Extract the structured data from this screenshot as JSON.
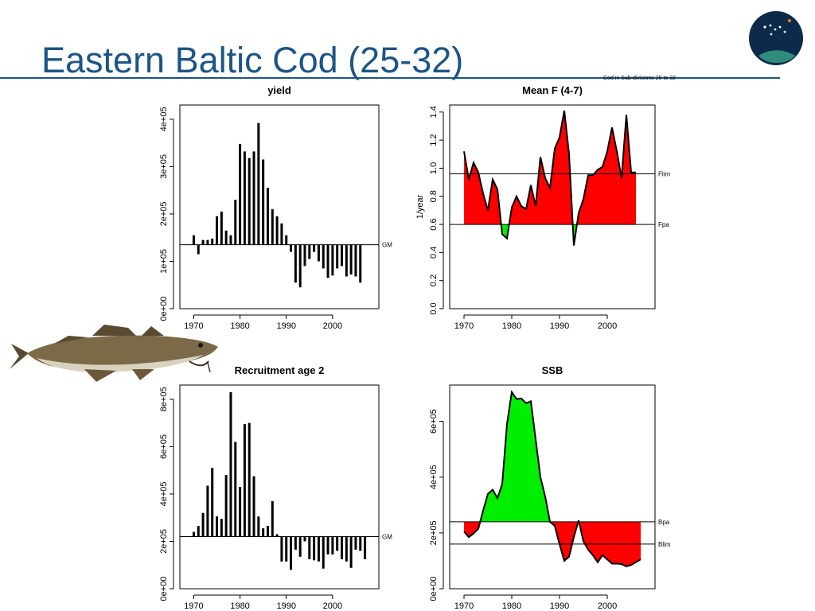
{
  "slide": {
    "title": "Eastern Baltic Cod (25-32)",
    "subnote": "Cod in Sub-divisions 25 to 32",
    "logo": "ices-logo-icon",
    "image": "cod-fish-illustration"
  },
  "colors": {
    "title": "#1d5585",
    "positive": "#00ee00",
    "negative": "#ff0000",
    "ink": "#000000"
  },
  "chart_data": [
    {
      "id": "yield",
      "type": "bar",
      "title": "yield",
      "ylabel": "",
      "baseline_label": "GM",
      "baseline": 135000,
      "xlim": [
        1967,
        2010
      ],
      "ylim": [
        0,
        430000
      ],
      "xticks": [
        1970,
        1980,
        1990,
        2000
      ],
      "yticks": [
        0,
        100000,
        200000,
        300000,
        400000
      ],
      "ytick_labels": [
        "0e+00",
        "1e+05",
        "2e+05",
        "3e+05",
        "4e+05"
      ],
      "x": [
        1970,
        1971,
        1972,
        1973,
        1974,
        1975,
        1976,
        1977,
        1978,
        1979,
        1980,
        1981,
        1982,
        1983,
        1984,
        1985,
        1986,
        1987,
        1988,
        1989,
        1990,
        1991,
        1992,
        1993,
        1994,
        1995,
        1996,
        1997,
        1998,
        1999,
        2000,
        2001,
        2002,
        2003,
        2004,
        2005,
        2006
      ],
      "values": [
        155000,
        115000,
        145000,
        145000,
        148000,
        195000,
        205000,
        165000,
        155000,
        230000,
        348000,
        332000,
        318000,
        332000,
        392000,
        315000,
        255000,
        210000,
        195000,
        180000,
        155000,
        120000,
        55000,
        45000,
        90000,
        105000,
        120000,
        100000,
        85000,
        65000,
        70000,
        85000,
        90000,
        68000,
        72000,
        68000,
        55000
      ]
    },
    {
      "id": "meanf",
      "type": "area",
      "title": "Mean F (4-7)",
      "ylabel": "1/year",
      "xlim": [
        1967,
        2010
      ],
      "ylim": [
        0,
        1.45
      ],
      "xticks": [
        1970,
        1980,
        1990,
        2000
      ],
      "yticks": [
        0,
        0.2,
        0.4,
        0.6,
        0.8,
        1.0,
        1.2,
        1.4
      ],
      "ytick_labels": [
        "0.0",
        "0.2",
        "0.4",
        "0.6",
        "0.8",
        "1.0",
        "1.2",
        "1.4"
      ],
      "reference_lines": [
        {
          "label": "Flim",
          "value": 0.96
        },
        {
          "label": "Fpa",
          "value": 0.6
        }
      ],
      "fill_base": 0.6,
      "x": [
        1970,
        1971,
        1972,
        1973,
        1974,
        1975,
        1976,
        1977,
        1978,
        1979,
        1980,
        1981,
        1982,
        1983,
        1984,
        1985,
        1986,
        1987,
        1988,
        1989,
        1990,
        1991,
        1992,
        1993,
        1994,
        1995,
        1996,
        1997,
        1998,
        1999,
        2000,
        2001,
        2002,
        2003,
        2004,
        2005,
        2006
      ],
      "values": [
        1.12,
        0.92,
        1.04,
        0.97,
        0.82,
        0.7,
        0.92,
        0.85,
        0.53,
        0.5,
        0.72,
        0.8,
        0.73,
        0.71,
        0.88,
        0.73,
        1.08,
        0.93,
        0.86,
        1.14,
        1.22,
        1.41,
        1.1,
        0.45,
        0.68,
        0.78,
        0.95,
        0.95,
        0.99,
        1.01,
        1.12,
        1.29,
        1.12,
        0.93,
        1.38,
        0.97,
        0.97
      ]
    },
    {
      "id": "recruitment",
      "type": "bar",
      "title": "Recruitment age 2",
      "ylabel": "",
      "baseline_label": "GM",
      "baseline": 220000,
      "xlim": [
        1967,
        2010
      ],
      "ylim": [
        0,
        860000
      ],
      "xticks": [
        1970,
        1980,
        1990,
        2000
      ],
      "yticks": [
        0,
        200000,
        400000,
        600000,
        800000
      ],
      "ytick_labels": [
        "0e+00",
        "2e+05",
        "4e+05",
        "6e+05",
        "8e+05"
      ],
      "x": [
        1970,
        1971,
        1972,
        1973,
        1974,
        1975,
        1976,
        1977,
        1978,
        1979,
        1980,
        1981,
        1982,
        1983,
        1984,
        1985,
        1986,
        1987,
        1988,
        1989,
        1990,
        1991,
        1992,
        1993,
        1994,
        1995,
        1996,
        1997,
        1998,
        1999,
        2000,
        2001,
        2002,
        2003,
        2004,
        2005,
        2006,
        2007
      ],
      "values": [
        240000,
        265000,
        320000,
        435000,
        510000,
        305000,
        295000,
        480000,
        830000,
        620000,
        430000,
        695000,
        700000,
        475000,
        305000,
        255000,
        265000,
        370000,
        230000,
        115000,
        115000,
        80000,
        165000,
        135000,
        200000,
        125000,
        120000,
        115000,
        85000,
        145000,
        145000,
        160000,
        125000,
        115000,
        88000,
        165000,
        160000,
        125000
      ]
    },
    {
      "id": "ssb",
      "type": "area",
      "title": "SSB",
      "ylabel": "",
      "xlim": [
        1967,
        2010
      ],
      "ylim": [
        0,
        730000
      ],
      "xticks": [
        1970,
        1980,
        1990,
        2000
      ],
      "yticks": [
        0,
        200000,
        400000,
        600000
      ],
      "ytick_labels": [
        "0e+00",
        "2e+05",
        "4e+05",
        "6e+05"
      ],
      "reference_lines": [
        {
          "label": "Bpa",
          "value": 240000
        },
        {
          "label": "Blim",
          "value": 160000
        }
      ],
      "fill_base": 240000,
      "x": [
        1970,
        1971,
        1972,
        1973,
        1974,
        1975,
        1976,
        1977,
        1978,
        1979,
        1980,
        1981,
        1982,
        1983,
        1984,
        1985,
        1986,
        1987,
        1988,
        1989,
        1990,
        1991,
        1992,
        1993,
        1994,
        1995,
        1996,
        1997,
        1998,
        1999,
        2000,
        2001,
        2002,
        2003,
        2004,
        2005,
        2006,
        2007
      ],
      "values": [
        205000,
        185000,
        198000,
        215000,
        280000,
        340000,
        355000,
        325000,
        375000,
        590000,
        705000,
        680000,
        682000,
        665000,
        672000,
        535000,
        400000,
        330000,
        240000,
        225000,
        160000,
        100000,
        115000,
        185000,
        245000,
        170000,
        140000,
        120000,
        95000,
        120000,
        105000,
        90000,
        90000,
        88000,
        80000,
        85000,
        95000,
        105000
      ]
    }
  ]
}
